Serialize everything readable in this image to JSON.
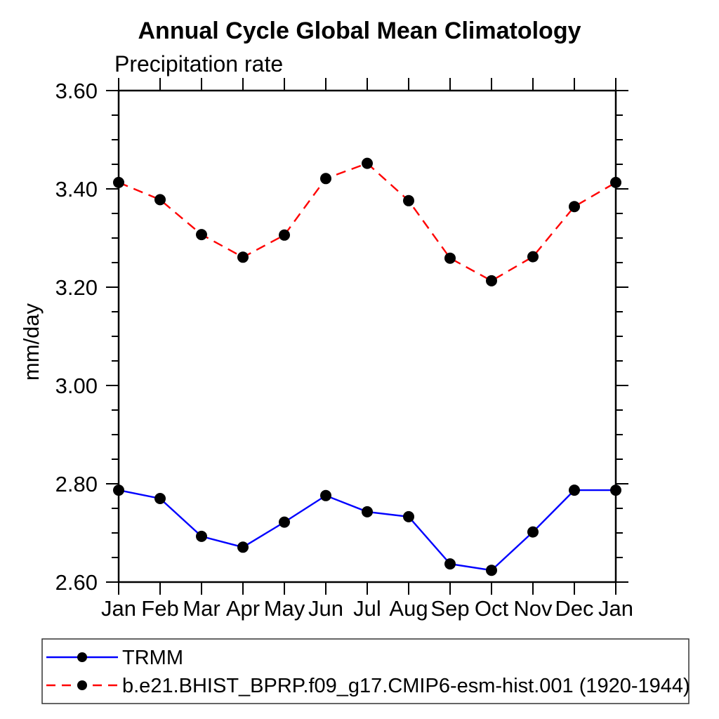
{
  "chart_data": {
    "type": "line",
    "title": "Annual Cycle Global Mean Climatology",
    "subtitle": "Precipitation rate",
    "ylabel": "mm/day",
    "xlabel": "",
    "categories": [
      "Jan",
      "Feb",
      "Mar",
      "Apr",
      "May",
      "Jun",
      "Jul",
      "Aug",
      "Sep",
      "Oct",
      "Nov",
      "Dec",
      "Jan"
    ],
    "ylim": [
      2.6,
      3.6
    ],
    "ytick_major_step": 0.2,
    "ytick_minor_step": 0.05,
    "ytick_labels": [
      "2.60",
      "2.80",
      "3.00",
      "3.20",
      "3.40",
      "3.60"
    ],
    "grid": false,
    "legend_position": "bottom-left-box",
    "axis_color": "#000000",
    "marker_color": "#000000",
    "series": [
      {
        "name": "TRMM",
        "color": "#0000ff",
        "style": "solid",
        "marker": "circle",
        "values": [
          2.787,
          2.77,
          2.693,
          2.671,
          2.722,
          2.776,
          2.743,
          2.733,
          2.637,
          2.624,
          2.702,
          2.787,
          2.787
        ]
      },
      {
        "name": "b.e21.BHIST_BPRP.f09_g17.CMIP6-esm-hist.001 (1920-1944)",
        "color": "#ff0000",
        "style": "dashed",
        "marker": "circle",
        "values": [
          3.413,
          3.378,
          3.307,
          3.261,
          3.306,
          3.421,
          3.452,
          3.376,
          3.259,
          3.213,
          3.262,
          3.364,
          3.413
        ]
      }
    ]
  }
}
